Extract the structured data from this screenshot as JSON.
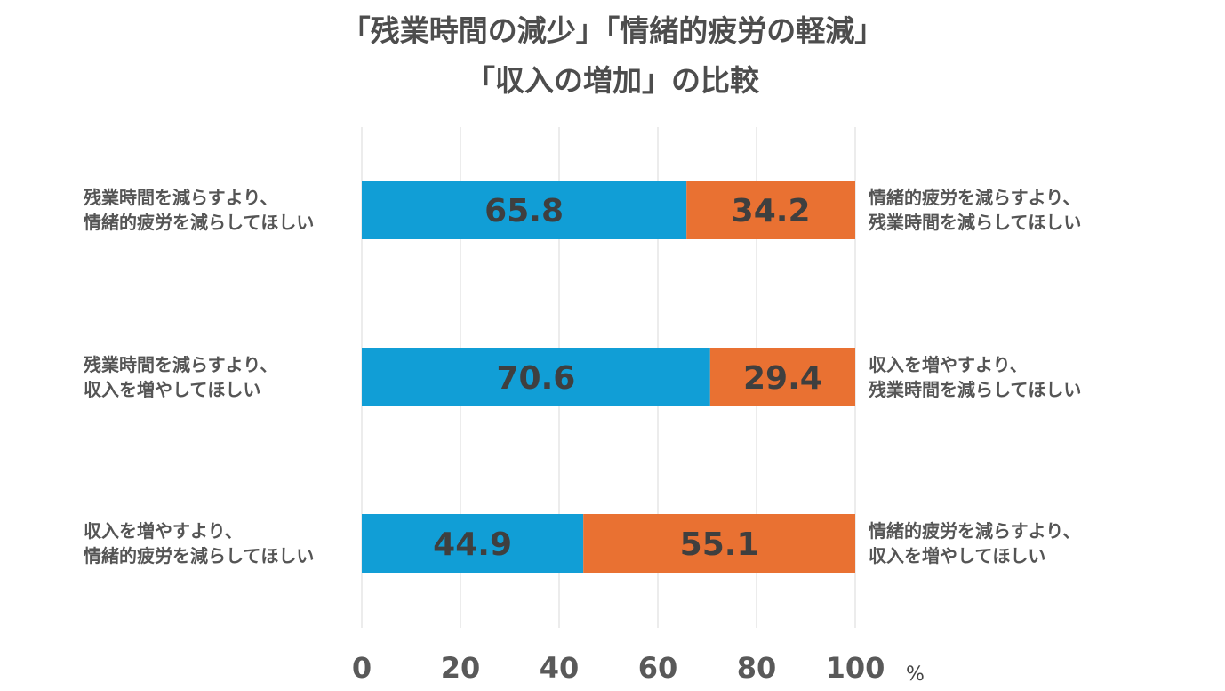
{
  "chart_data": {
    "type": "bar",
    "stacked": true,
    "orientation": "horizontal",
    "title": [
      "「残業時間の減少」「情緒的疲労の軽減」",
      "「収入の増加」の比較"
    ],
    "xlim": [
      0,
      100
    ],
    "xticks": [
      "0",
      "20",
      "40",
      "60",
      "80",
      "100"
    ],
    "x_unit": "%",
    "grid": true,
    "colors": {
      "left": "#119ed6",
      "right": "#e97132",
      "value_label": "#3f3f3f",
      "grid": "#d9d9d9"
    },
    "rows": [
      {
        "left_label": [
          "残業時間を減らすより、",
          "情緒的疲労を減らしてほしい"
        ],
        "right_label": [
          "情緒的疲労を減らすより、",
          "残業時間を減らしてほしい"
        ],
        "left_value": 65.8,
        "right_value": 34.2
      },
      {
        "left_label": [
          "残業時間を減らすより、",
          "収入を増やしてほしい"
        ],
        "right_label": [
          "収入を増やすより、",
          "残業時間を減らしてほしい"
        ],
        "left_value": 70.6,
        "right_value": 29.4
      },
      {
        "left_label": [
          "収入を増やすより、",
          "情緒的疲労を減らしてほしい"
        ],
        "right_label": [
          "情緒的疲労を減らすより、",
          "収入を増やしてほしい"
        ],
        "left_value": 44.9,
        "right_value": 55.1
      }
    ]
  }
}
